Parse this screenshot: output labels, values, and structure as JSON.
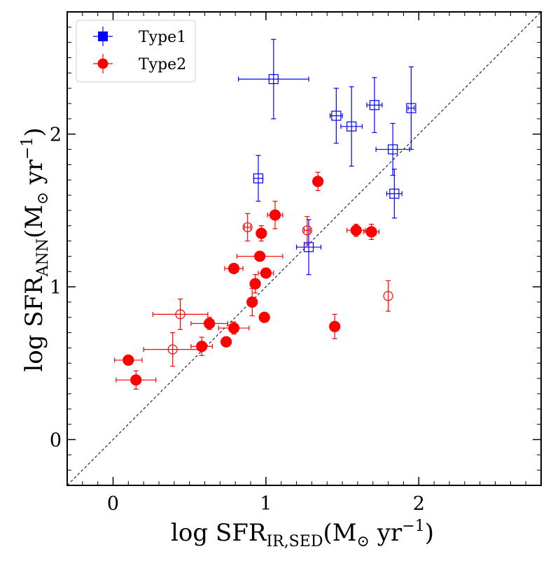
{
  "chart_data": {
    "type": "scatter",
    "title": "",
    "xlim": [
      -0.3,
      2.8
    ],
    "ylim": [
      -0.3,
      2.8
    ],
    "xticks": [
      0,
      1,
      2
    ],
    "yticks": [
      0,
      1,
      2
    ],
    "xlabel": {
      "prefix": "log SFR",
      "subscript": "IR,SED",
      "unit": "(M",
      "unit_sub": "⊙",
      "unit_tail": " yr",
      "exponent": "−1",
      "close": ")"
    },
    "ylabel": {
      "prefix": "log SFR",
      "subscript": "ANN",
      "unit": "(M",
      "unit_sub": "⊙",
      "unit_tail": " yr",
      "exponent": "−1",
      "close": ")"
    },
    "reference_line": "1:1",
    "legend_position": "top-left",
    "series": [
      {
        "name": "Type1",
        "color": "#0000ff",
        "marker": "square",
        "points": [
          {
            "x": 1.05,
            "y": 2.36,
            "xerr": 0.23,
            "yerr": 0.26,
            "filled": false
          },
          {
            "x": 1.46,
            "y": 2.12,
            "xerr": 0.04,
            "yerr": 0.18,
            "filled": false
          },
          {
            "x": 1.56,
            "y": 2.05,
            "xerr": 0.07,
            "yerr": 0.26,
            "filled": false
          },
          {
            "x": 1.71,
            "y": 2.19,
            "xerr": 0.05,
            "yerr": 0.18,
            "filled": false
          },
          {
            "x": 1.95,
            "y": 2.17,
            "xerr": 0.02,
            "yerr": 0.27,
            "filled": false
          },
          {
            "x": 1.83,
            "y": 1.9,
            "xerr": 0.11,
            "yerr": 0.17,
            "filled": false
          },
          {
            "x": 1.84,
            "y": 1.61,
            "xerr": 0.05,
            "yerr": 0.16,
            "filled": false
          },
          {
            "x": 0.95,
            "y": 1.71,
            "xerr": 0.03,
            "yerr": 0.15,
            "filled": false
          },
          {
            "x": 1.28,
            "y": 1.26,
            "xerr": 0.08,
            "yerr": 0.18,
            "filled": false
          }
        ]
      },
      {
        "name": "Type2",
        "color": "#ff0000",
        "marker": "circle",
        "points": [
          {
            "x": 1.34,
            "y": 1.69,
            "xerr": 0.0,
            "yerr": 0.06,
            "filled": true
          },
          {
            "x": 1.06,
            "y": 1.47,
            "xerr": 0.05,
            "yerr": 0.09,
            "filled": true
          },
          {
            "x": 0.88,
            "y": 1.39,
            "xerr": 0.02,
            "yerr": 0.09,
            "filled": false
          },
          {
            "x": 1.27,
            "y": 1.37,
            "xerr": 0.02,
            "yerr": 0.09,
            "filled": false
          },
          {
            "x": 0.97,
            "y": 1.35,
            "xerr": 0.02,
            "yerr": 0.05,
            "filled": true
          },
          {
            "x": 1.59,
            "y": 1.37,
            "xerr": 0.06,
            "yerr": 0.04,
            "filled": true
          },
          {
            "x": 1.69,
            "y": 1.36,
            "xerr": 0.05,
            "yerr": 0.05,
            "filled": true
          },
          {
            "x": 0.96,
            "y": 1.2,
            "xerr": 0.15,
            "yerr": 0.0,
            "filled": true
          },
          {
            "x": 0.79,
            "y": 1.12,
            "xerr": 0.06,
            "yerr": 0.03,
            "filled": true
          },
          {
            "x": 1.0,
            "y": 1.09,
            "xerr": 0.05,
            "yerr": 0.03,
            "filled": true
          },
          {
            "x": 0.93,
            "y": 1.02,
            "xerr": 0.03,
            "yerr": 0.06,
            "filled": true
          },
          {
            "x": 1.8,
            "y": 0.94,
            "xerr": 0.0,
            "yerr": 0.1,
            "filled": false
          },
          {
            "x": 0.91,
            "y": 0.9,
            "xerr": 0.0,
            "yerr": 0.09,
            "filled": true
          },
          {
            "x": 0.44,
            "y": 0.82,
            "xerr": 0.18,
            "yerr": 0.1,
            "filled": false
          },
          {
            "x": 0.99,
            "y": 0.8,
            "xerr": 0.0,
            "yerr": 0.0,
            "filled": true
          },
          {
            "x": 0.63,
            "y": 0.76,
            "xerr": 0.12,
            "yerr": 0.04,
            "filled": true
          },
          {
            "x": 0.79,
            "y": 0.73,
            "xerr": 0.1,
            "yerr": 0.04,
            "filled": true
          },
          {
            "x": 1.45,
            "y": 0.74,
            "xerr": 0.0,
            "yerr": 0.08,
            "filled": true
          },
          {
            "x": 0.74,
            "y": 0.64,
            "xerr": 0.03,
            "yerr": 0.03,
            "filled": true
          },
          {
            "x": 0.58,
            "y": 0.61,
            "xerr": 0.07,
            "yerr": 0.06,
            "filled": true
          },
          {
            "x": 0.39,
            "y": 0.59,
            "xerr": 0.19,
            "yerr": 0.11,
            "filled": false
          },
          {
            "x": 0.1,
            "y": 0.52,
            "xerr": 0.09,
            "yerr": 0.03,
            "filled": true
          },
          {
            "x": 0.15,
            "y": 0.39,
            "xerr": 0.13,
            "yerr": 0.06,
            "filled": true
          }
        ]
      }
    ]
  }
}
